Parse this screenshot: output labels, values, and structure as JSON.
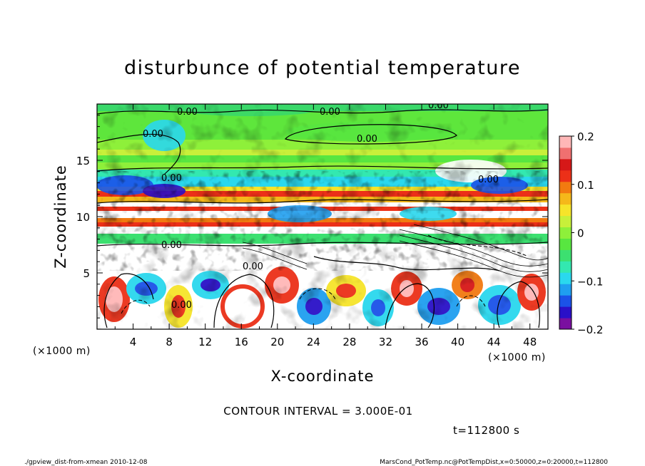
{
  "chart_data": {
    "type": "heatmap",
    "title": "disturbunce of potential temperature",
    "xlabel": "X-coordinate",
    "ylabel": "Z-coordinate",
    "x_unit": "(×1000 m)",
    "y_unit": "(×1000 m)",
    "xlim": [
      0,
      50
    ],
    "ylim": [
      0,
      20
    ],
    "x_ticks": [
      4,
      8,
      12,
      16,
      20,
      24,
      28,
      32,
      36,
      40,
      44,
      48
    ],
    "y_ticks": [
      5,
      10,
      15
    ],
    "colorbar": {
      "min": -0.2,
      "max": 0.2,
      "tick_values": [
        0.2,
        0.1,
        0,
        -0.1,
        -0.2
      ],
      "tick_labels": [
        "0.2",
        "0.1",
        "0",
        "−0.1",
        "−0.2"
      ],
      "colors": [
        "#7a0fa0",
        "#2a10c8",
        "#1b52e8",
        "#1f9ff0",
        "#2ad8ee",
        "#33e8b0",
        "#3ce070",
        "#58e640",
        "#8ef03a",
        "#c8f03a",
        "#f6e42a",
        "#f5b81a",
        "#f27a10",
        "#ec3018",
        "#d61818",
        "#f07070",
        "#ffb7b7"
      ]
    },
    "contour_labels": [
      "0.00",
      "0.00",
      "0.00",
      "0.00",
      "0.00",
      "0.00",
      "0.00",
      "0.00",
      "0.00",
      "0.00"
    ],
    "contour_interval_text": "CONTOUR INTERVAL = 3.000E-01",
    "time_text": "t=112800 s"
  },
  "footer": {
    "left": "./gpview_dist-from-xmean  2010-12-08",
    "right": "MarsCond_PotTemp.nc@PotTempDist,x=0:50000,z=0:20000,t=112800"
  }
}
